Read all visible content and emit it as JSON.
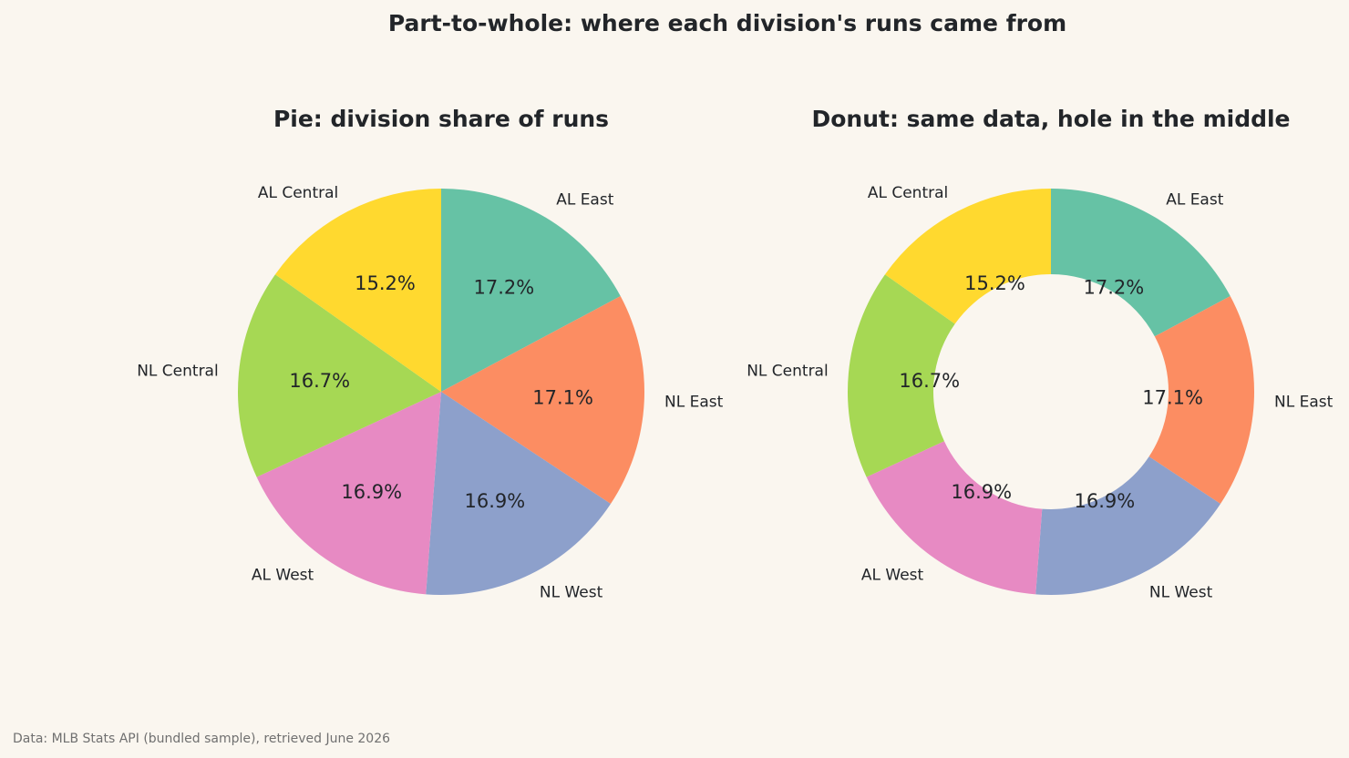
{
  "figure": {
    "title": "Part-to-whole: where each division's runs came from",
    "footnote": "Data: MLB Stats API (bundled sample), retrieved June 2026",
    "background": "#faf6ef"
  },
  "chart_data": [
    {
      "type": "pie",
      "title": "Pie: division share of runs",
      "start_angle_deg": 90,
      "direction": "clockwise",
      "slices": [
        {
          "label": "AL East",
          "value": 17.2,
          "pct_label": "17.2%",
          "color": "#66c2a5"
        },
        {
          "label": "NL East",
          "value": 17.1,
          "pct_label": "17.1%",
          "color": "#fc8d62"
        },
        {
          "label": "NL West",
          "value": 16.9,
          "pct_label": "16.9%",
          "color": "#8da0cb"
        },
        {
          "label": "AL West",
          "value": 16.9,
          "pct_label": "16.9%",
          "color": "#e78ac3"
        },
        {
          "label": "NL Central",
          "value": 16.7,
          "pct_label": "16.7%",
          "color": "#a6d854"
        },
        {
          "label": "AL Central",
          "value": 15.2,
          "pct_label": "15.2%",
          "color": "#ffd92f"
        }
      ]
    },
    {
      "type": "donut",
      "title": "Donut: same data, hole in the middle",
      "start_angle_deg": 90,
      "direction": "clockwise",
      "slices": [
        {
          "label": "AL East",
          "value": 17.2,
          "pct_label": "17.2%",
          "color": "#66c2a5"
        },
        {
          "label": "NL East",
          "value": 17.1,
          "pct_label": "17.1%",
          "color": "#fc8d62"
        },
        {
          "label": "NL West",
          "value": 16.9,
          "pct_label": "16.9%",
          "color": "#8da0cb"
        },
        {
          "label": "AL West",
          "value": 16.9,
          "pct_label": "16.9%",
          "color": "#e78ac3"
        },
        {
          "label": "NL Central",
          "value": 16.7,
          "pct_label": "16.7%",
          "color": "#a6d854"
        },
        {
          "label": "AL Central",
          "value": 15.2,
          "pct_label": "15.2%",
          "color": "#ffd92f"
        }
      ]
    }
  ]
}
